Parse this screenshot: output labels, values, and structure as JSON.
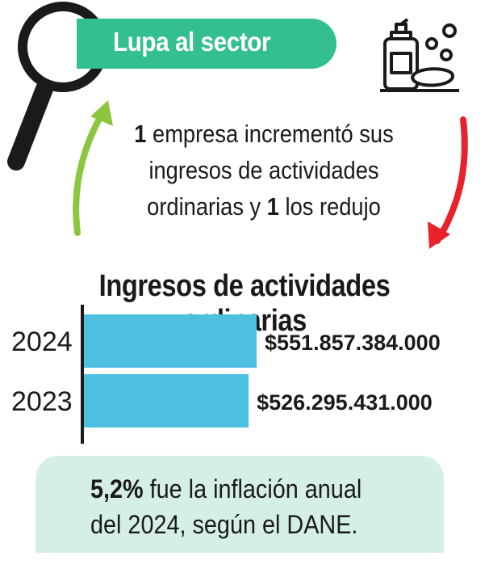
{
  "header": {
    "banner": "Lupa al sector",
    "summary": {
      "count_increased": "1",
      "text_1": " empresa incrementó sus ingresos de actividades ordinarias y ",
      "count_reduced": "1",
      "text_2": " los redujo"
    }
  },
  "icons": {
    "magnifier": "magnifying-glass-icon",
    "soap": "soap-dispenser-icon",
    "up_arrow": "green-up-arrow-icon",
    "down_arrow": "red-down-arrow-icon"
  },
  "colors": {
    "banner": "#34bf8f",
    "bar": "#4dbfe0",
    "note_bg": "#d6efe6",
    "arrow_up": "#8cc63f",
    "arrow_down": "#e8222a"
  },
  "chart_data": {
    "type": "bar",
    "orientation": "horizontal",
    "title": "Ingresos de actividades ordinarias",
    "categories": [
      "2024",
      "2023"
    ],
    "values": [
      551857384000,
      526295431000
    ],
    "value_labels": [
      "$551.857.384.000",
      "$526.295.431.000"
    ],
    "xlim": [
      0,
      551857384000
    ]
  },
  "note": {
    "value": "5,2%",
    "line1_rest": " fue la inflación anual",
    "line2": "del 2024, según el DANE."
  }
}
